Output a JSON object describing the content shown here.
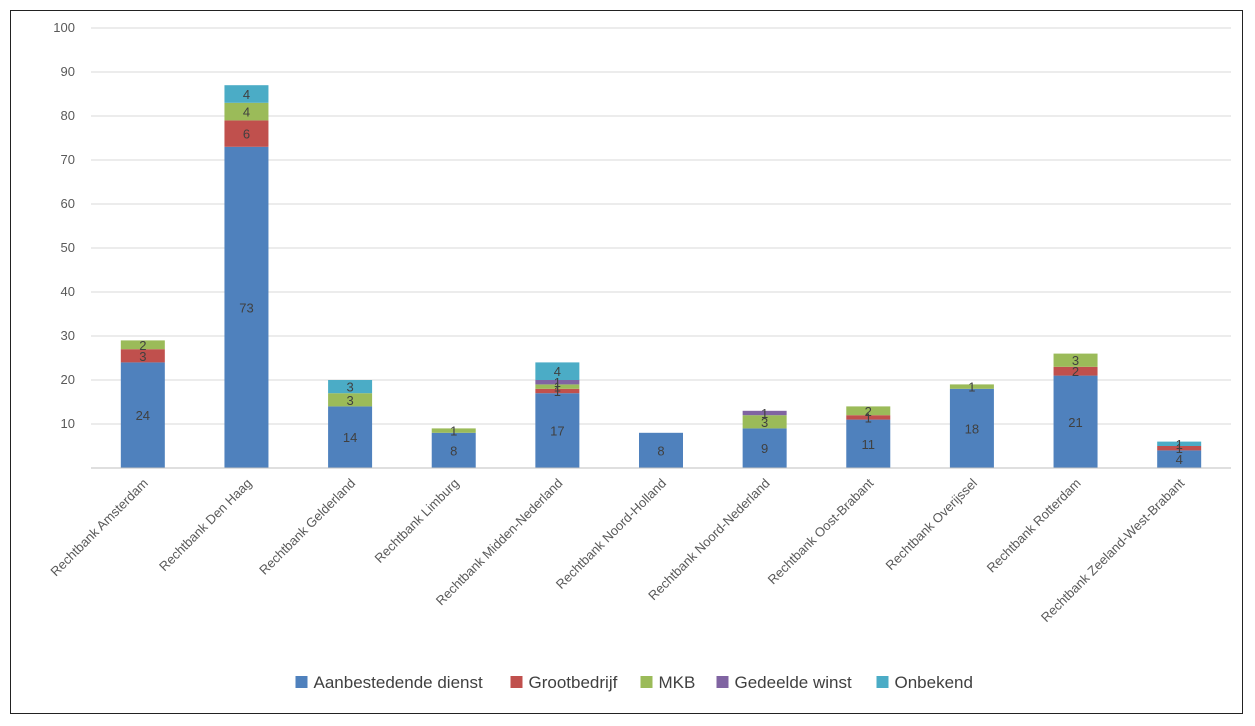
{
  "chart_data": {
    "type": "bar",
    "stacked": true,
    "categories": [
      "Rechtbank Amsterdam",
      "Rechtbank Den Haag",
      "Rechtbank Gelderland",
      "Rechtbank Limburg",
      "Rechtbank Midden-Nederland",
      "Rechtbank Noord-Holland",
      "Rechtbank Noord-Nederland",
      "Rechtbank Oost-Brabant",
      "Rechtbank Overijssel",
      "Rechtbank Rotterdam",
      "Rechtbank Zeeland-West-Brabant"
    ],
    "series": [
      {
        "name": "Aanbestedende dienst",
        "color": "#4F81BD",
        "values": [
          24,
          73,
          14,
          8,
          17,
          8,
          9,
          11,
          18,
          21,
          4
        ]
      },
      {
        "name": "Grootbedrijf",
        "color": "#C0504D",
        "values": [
          3,
          6,
          0,
          0,
          1,
          0,
          0,
          1,
          0,
          2,
          1
        ]
      },
      {
        "name": "MKB",
        "color": "#9BBB59",
        "values": [
          2,
          4,
          3,
          1,
          1,
          0,
          3,
          2,
          1,
          3,
          0
        ]
      },
      {
        "name": "Gedeelde winst",
        "color": "#8064A2",
        "values": [
          0,
          0,
          0,
          0,
          1,
          0,
          1,
          0,
          0,
          0,
          0
        ]
      },
      {
        "name": "Onbekend",
        "color": "#4BACC6",
        "values": [
          0,
          4,
          3,
          0,
          4,
          0,
          0,
          0,
          0,
          0,
          1
        ]
      }
    ],
    "yticks": [
      10,
      20,
      30,
      40,
      50,
      60,
      70,
      80,
      90,
      100
    ],
    "ylim": [
      0,
      100
    ],
    "grid": true,
    "legend": "bottom",
    "title": "",
    "xlabel": "",
    "ylabel": ""
  }
}
